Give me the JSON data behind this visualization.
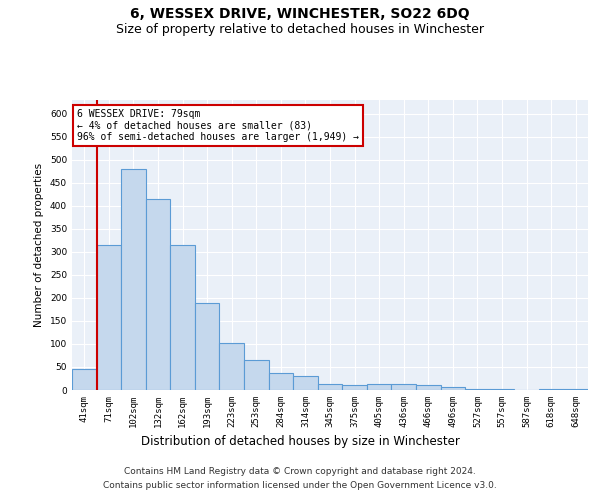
{
  "title": "6, WESSEX DRIVE, WINCHESTER, SO22 6DQ",
  "subtitle": "Size of property relative to detached houses in Winchester",
  "xlabel": "Distribution of detached houses by size in Winchester",
  "ylabel": "Number of detached properties",
  "categories": [
    "41sqm",
    "71sqm",
    "102sqm",
    "132sqm",
    "162sqm",
    "193sqm",
    "223sqm",
    "253sqm",
    "284sqm",
    "314sqm",
    "345sqm",
    "375sqm",
    "405sqm",
    "436sqm",
    "466sqm",
    "496sqm",
    "527sqm",
    "557sqm",
    "587sqm",
    "618sqm",
    "648sqm"
  ],
  "values": [
    45,
    315,
    480,
    415,
    315,
    190,
    102,
    65,
    37,
    30,
    13,
    10,
    12,
    12,
    10,
    6,
    3,
    3,
    0,
    3,
    3
  ],
  "bar_color": "#c5d8ed",
  "bar_edge_color": "#5b9bd5",
  "bar_edge_width": 0.8,
  "marker_line_color": "#cc0000",
  "annotation_text": "6 WESSEX DRIVE: 79sqm\n← 4% of detached houses are smaller (83)\n96% of semi-detached houses are larger (1,949) →",
  "annotation_box_color": "#ffffff",
  "annotation_box_edge_color": "#cc0000",
  "ylim": [
    0,
    630
  ],
  "yticks": [
    0,
    50,
    100,
    150,
    200,
    250,
    300,
    350,
    400,
    450,
    500,
    550,
    600
  ],
  "plot_bg_color": "#eaf0f8",
  "grid_color": "#ffffff",
  "fig_bg_color": "#ffffff",
  "footer_line1": "Contains HM Land Registry data © Crown copyright and database right 2024.",
  "footer_line2": "Contains public sector information licensed under the Open Government Licence v3.0.",
  "title_fontsize": 10,
  "subtitle_fontsize": 9,
  "xlabel_fontsize": 8.5,
  "ylabel_fontsize": 7.5,
  "tick_fontsize": 6.5,
  "annotation_fontsize": 7,
  "footer_fontsize": 6.5
}
